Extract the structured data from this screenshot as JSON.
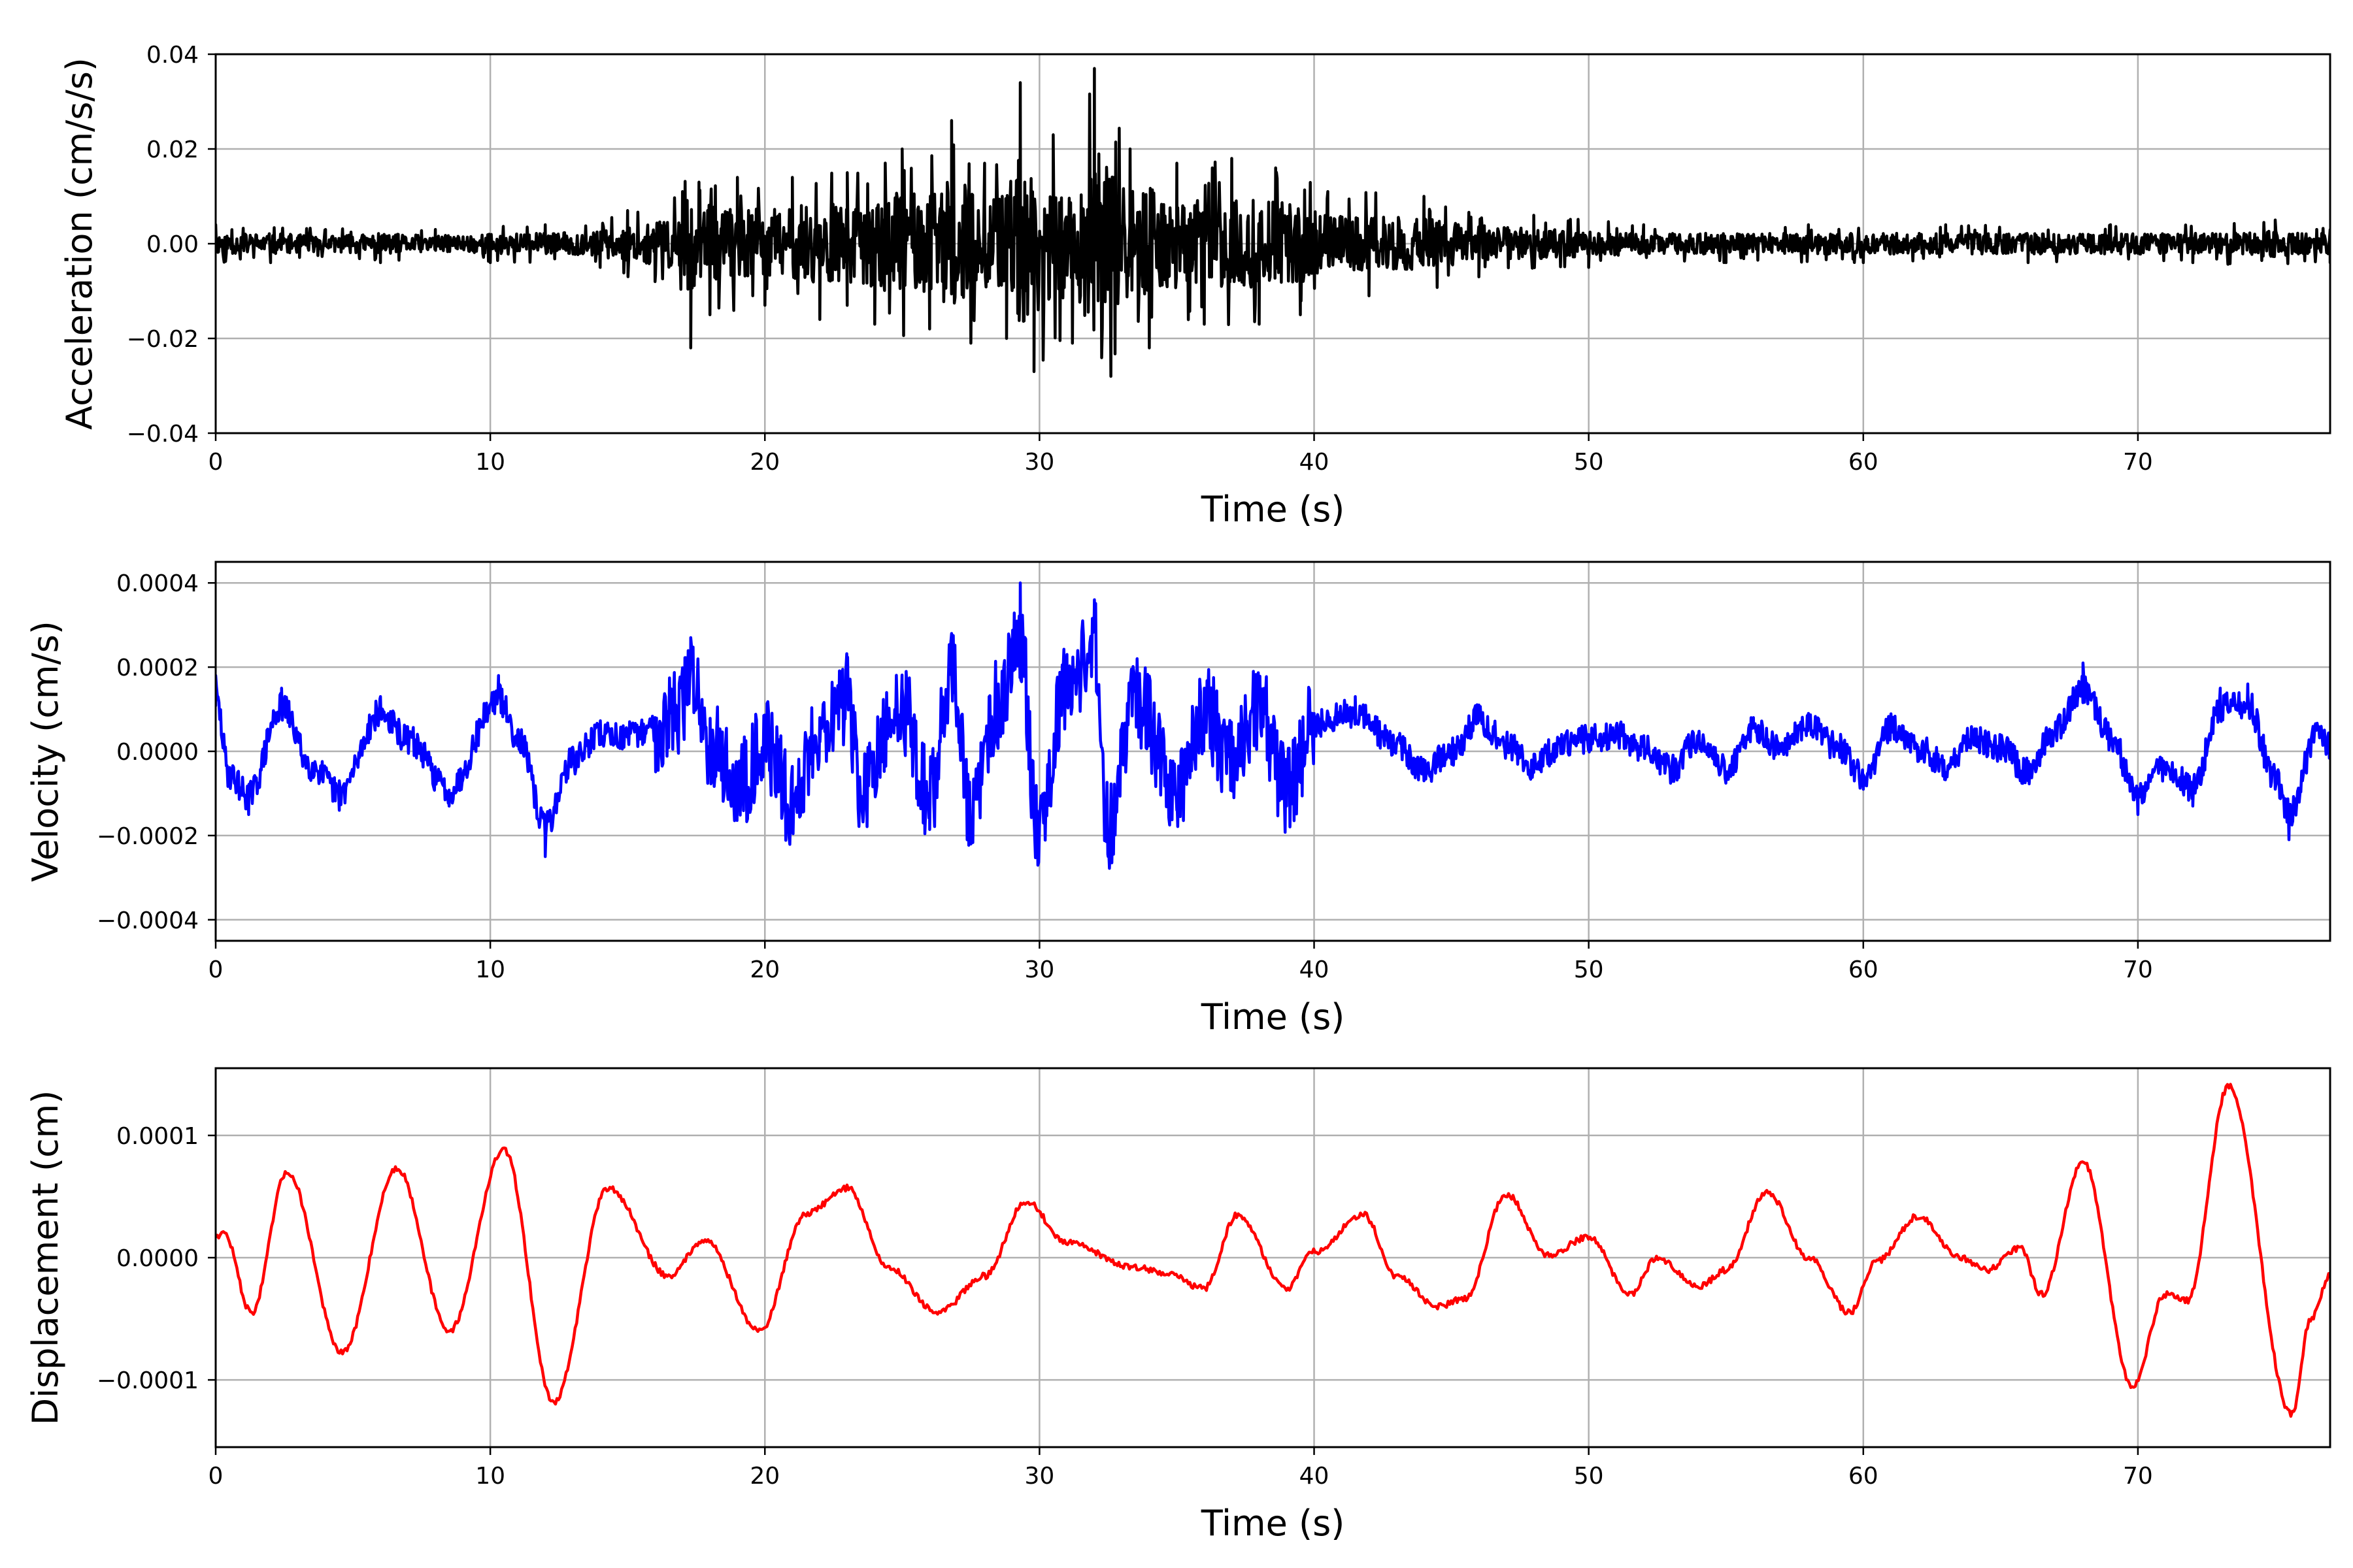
{
  "chart_data": [
    {
      "type": "line",
      "title": "",
      "xlabel": "Time (s)",
      "ylabel": "Acceleration (cm/s/s)",
      "xlim": [
        0,
        77
      ],
      "ylim": [
        -0.04,
        0.04
      ],
      "xticks": [
        0,
        10,
        20,
        30,
        40,
        50,
        60,
        70
      ],
      "yticks": [
        -0.04,
        -0.02,
        0.0,
        0.02,
        0.04
      ],
      "ytick_labels": [
        "−0.04",
        "−0.02",
        "0.00",
        "0.02",
        "0.04"
      ],
      "xtick_labels": [
        "0",
        "10",
        "20",
        "30",
        "40",
        "50",
        "60",
        "70"
      ],
      "grid": true,
      "color": "#000000",
      "series": [
        {
          "x": [
            0,
            2,
            4,
            6,
            8,
            10,
            12,
            14,
            15,
            16,
            17,
            17.3,
            17.6,
            18,
            19,
            20,
            21,
            22,
            23,
            24,
            25,
            26,
            26.8,
            27.5,
            28,
            28.8,
            29.3,
            29.8,
            30.5,
            31.2,
            32,
            32.6,
            33.3,
            34,
            35,
            36,
            37,
            38,
            38.6,
            39.5,
            40.5,
            42,
            44,
            46,
            48,
            50,
            52,
            55,
            58,
            60,
            63,
            66,
            69,
            72,
            75,
            77
          ],
          "values": [
            0.004,
            -0.004,
            0.003,
            -0.004,
            0.003,
            -0.004,
            0.004,
            -0.005,
            0.007,
            -0.008,
            0.011,
            -0.022,
            0.013,
            -0.015,
            0.014,
            -0.013,
            0.014,
            -0.016,
            0.015,
            -0.017,
            0.02,
            -0.018,
            0.026,
            -0.021,
            0.017,
            -0.02,
            0.034,
            -0.027,
            0.023,
            -0.021,
            0.037,
            -0.028,
            0.02,
            -0.022,
            0.017,
            -0.017,
            0.018,
            -0.017,
            0.016,
            -0.015,
            0.011,
            -0.011,
            0.01,
            -0.007,
            0.006,
            -0.005,
            0.004,
            -0.004,
            0.004,
            -0.004,
            0.004,
            -0.004,
            0.004,
            -0.004,
            0.005,
            -0.004
          ]
        }
      ]
    },
    {
      "type": "line",
      "title": "",
      "xlabel": "Time (s)",
      "ylabel": "Velocity (cm/s)",
      "xlim": [
        0,
        77
      ],
      "ylim": [
        -0.00045,
        0.00045
      ],
      "xticks": [
        0,
        10,
        20,
        30,
        40,
        50,
        60,
        70
      ],
      "yticks": [
        -0.0004,
        -0.0002,
        0.0,
        0.0002,
        0.0004
      ],
      "ytick_labels": [
        "−0.0004",
        "−0.0002",
        "0.0000",
        "0.0002",
        "0.0004"
      ],
      "xtick_labels": [
        "0",
        "10",
        "20",
        "30",
        "40",
        "50",
        "60",
        "70"
      ],
      "grid": true,
      "color": "#0000ff",
      "series": [
        {
          "x": [
            0,
            0.5,
            1.2,
            2.4,
            3.5,
            4.5,
            6,
            7,
            8.5,
            10.3,
            11,
            12,
            13,
            14,
            15,
            16,
            17,
            17.3,
            18,
            19,
            20,
            21,
            22,
            23,
            23.5,
            25,
            26,
            26.8,
            27.5,
            28.5,
            29.3,
            29.9,
            31,
            32,
            32.5,
            33.5,
            35,
            36,
            37,
            38,
            39,
            40,
            41.5,
            43,
            44,
            45,
            46,
            47,
            48,
            49,
            50,
            51,
            52,
            53,
            54,
            55,
            56,
            57,
            58,
            59,
            60,
            61,
            62,
            63,
            64,
            65,
            66,
            67,
            68,
            69,
            70,
            71,
            72,
            73,
            74,
            75,
            75.5,
            76.5,
            77
          ],
          "values": [
            0.00018,
            -8e-05,
            -0.00015,
            0.00015,
            -5e-05,
            -0.00014,
            0.00013,
            4e-05,
            -0.00013,
            0.00018,
            5e-05,
            -0.00025,
            -3e-05,
            6e-05,
            5e-05,
            8e-05,
            0.00015,
            0.00027,
            4e-05,
            -0.00012,
            3e-05,
            -0.00018,
            8e-05,
            0.00018,
            -0.00014,
            0.00015,
            -0.00016,
            0.00028,
            -0.00022,
            0.00016,
            0.0004,
            -0.00024,
            0.00023,
            0.00036,
            -0.00025,
            0.00018,
            -0.00014,
            0.00015,
            -5e-05,
            0.00014,
            -0.00013,
            9e-05,
            0.00013,
            2e-05,
            -7e-05,
            0.0,
            0.00011,
            2e-05,
            -5e-05,
            2e-05,
            4e-05,
            6e-05,
            1e-05,
            -6e-05,
            4e-05,
            -6e-05,
            8e-05,
            0.0,
            9e-05,
            2e-05,
            -9e-05,
            8e-05,
            1e-05,
            -5e-05,
            4e-05,
            1e-05,
            -7e-05,
            7e-05,
            0.00021,
            5e-05,
            -0.00015,
            -5e-05,
            -0.00013,
            0.00015,
            0.00016,
            -9e-05,
            -0.00021,
            5e-05,
            2e-05
          ]
        }
      ]
    },
    {
      "type": "line",
      "title": "",
      "xlabel": "Time (s)",
      "ylabel": "Displacement (cm)",
      "xlim": [
        0,
        77
      ],
      "ylim": [
        -0.000155,
        0.000155
      ],
      "xticks": [
        0,
        10,
        20,
        30,
        40,
        50,
        60,
        70
      ],
      "yticks": [
        -0.0001,
        0.0,
        0.0001
      ],
      "ytick_labels": [
        "−0.0001",
        "0.0000",
        "0.0001"
      ],
      "xtick_labels": [
        "0",
        "10",
        "20",
        "30",
        "40",
        "50",
        "60",
        "70"
      ],
      "grid": true,
      "color": "#ff0000",
      "series": [
        {
          "x": [
            0,
            0.3,
            1.3,
            2.6,
            4.6,
            6.6,
            8.5,
            10.5,
            12.3,
            14.3,
            16.5,
            17.8,
            19.8,
            21.5,
            23,
            24.5,
            26.3,
            28,
            29.5,
            31,
            33.5,
            34.5,
            36,
            37.2,
            39,
            40,
            41.8,
            43,
            44.5,
            45.5,
            47,
            48.5,
            50,
            51.5,
            52.5,
            54,
            55,
            56.5,
            58,
            59.5,
            60.5,
            62,
            63.5,
            64.5,
            65.7,
            66.5,
            68,
            69.8,
            71,
            71.8,
            73.3,
            75.6,
            76.3,
            77
          ],
          "values": [
            1.8e-05,
            2e-05,
            -4.5e-05,
            7e-05,
            -7.8e-05,
            7.3e-05,
            -6e-05,
            8.8e-05,
            -0.000118,
            5.7e-05,
            -1.5e-05,
            1.5e-05,
            -6e-05,
            3.6e-05,
            5.7e-05,
            -8e-06,
            -4.5e-05,
            -1.5e-05,
            4.6e-05,
            1.2e-05,
            -8e-06,
            -1.2e-05,
            -2.5e-05,
            3.5e-05,
            -2.5e-05,
            5e-06,
            3.5e-05,
            -1.5e-05,
            -4e-05,
            -3.3e-05,
            5.2e-05,
            2e-06,
            1.7e-05,
            -3e-05,
            0.0,
            -2.4e-05,
            -1e-05,
            5.4e-05,
            0.0,
            -4.5e-05,
            -3e-06,
            3.4e-05,
            0.0,
            -1e-05,
            8e-06,
            -3e-05,
            7.8e-05,
            -0.000105,
            -3e-05,
            -3.5e-05,
            0.00014,
            -0.000128,
            -5e-05,
            -1.5e-05
          ]
        }
      ]
    }
  ]
}
